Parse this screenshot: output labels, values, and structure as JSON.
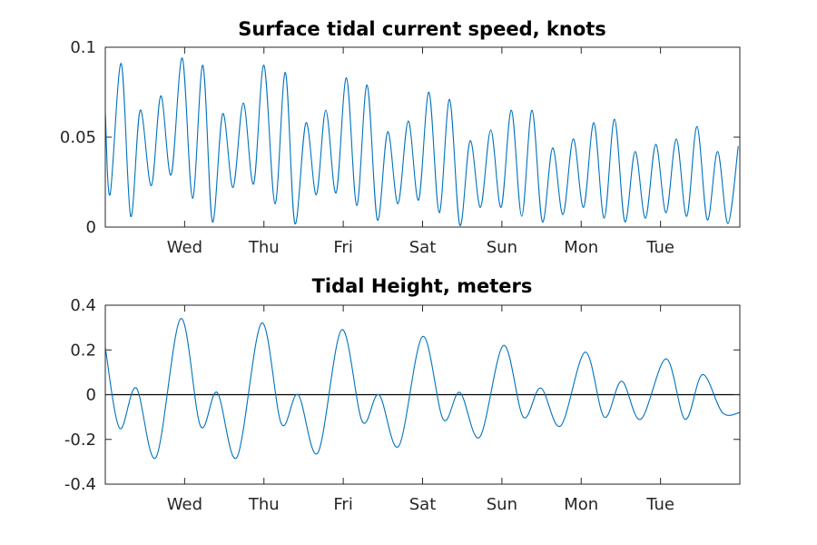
{
  "chart_data": [
    {
      "type": "line",
      "title": "Surface tidal current speed, knots",
      "xlabel": "",
      "ylabel": "",
      "ylim": [
        0,
        0.1
      ],
      "y_ticks": [
        0,
        0.05,
        0.1
      ],
      "y_tick_labels": [
        "0",
        "0.05",
        "0.1"
      ],
      "xlim_days": [
        0,
        8
      ],
      "x_ticks_days": [
        1,
        2,
        3,
        4,
        5,
        6,
        7
      ],
      "x_tick_labels": [
        "Wed",
        "Thu",
        "Fri",
        "Sat",
        "Sun",
        "Mon",
        "Tue"
      ],
      "grid": false,
      "series": [
        {
          "color": "#0072bd",
          "x": [
            0,
            0.06,
            0.2,
            0.32,
            0.44,
            0.58,
            0.7,
            0.83,
            0.97,
            1.1,
            1.23,
            1.35,
            1.48,
            1.61,
            1.74,
            1.87,
            2.0,
            2.14,
            2.27,
            2.39,
            2.53,
            2.66,
            2.78,
            2.91,
            3.04,
            3.17,
            3.3,
            3.43,
            3.56,
            3.69,
            3.82,
            3.95,
            4.08,
            4.21,
            4.34,
            4.47,
            4.6,
            4.73,
            4.86,
            4.99,
            5.12,
            5.25,
            5.38,
            5.51,
            5.64,
            5.77,
            5.9,
            6.03,
            6.16,
            6.29,
            6.42,
            6.55,
            6.68,
            6.81,
            6.94,
            7.07,
            7.2,
            7.33,
            7.46,
            7.59,
            7.72,
            7.85,
            7.98
          ],
          "y": [
            0.064,
            0.018,
            0.091,
            0.006,
            0.065,
            0.023,
            0.073,
            0.029,
            0.094,
            0.016,
            0.09,
            0.003,
            0.063,
            0.022,
            0.069,
            0.024,
            0.09,
            0.013,
            0.086,
            0.002,
            0.058,
            0.018,
            0.065,
            0.019,
            0.083,
            0.012,
            0.079,
            0.004,
            0.053,
            0.013,
            0.059,
            0.015,
            0.075,
            0.008,
            0.071,
            0.001,
            0.048,
            0.011,
            0.054,
            0.011,
            0.065,
            0.006,
            0.065,
            0.003,
            0.044,
            0.007,
            0.049,
            0.011,
            0.058,
            0.005,
            0.06,
            0.003,
            0.042,
            0.005,
            0.046,
            0.008,
            0.049,
            0.006,
            0.056,
            0.004,
            0.042,
            0.002,
            0.045
          ]
        }
      ]
    },
    {
      "type": "line",
      "title": "Tidal Height, meters",
      "xlabel": "",
      "ylabel": "",
      "ylim": [
        -0.4,
        0.4
      ],
      "y_ticks": [
        -0.4,
        -0.2,
        0,
        0.2,
        0.4
      ],
      "y_tick_labels": [
        "-0.4",
        "-0.2",
        "0",
        "0.2",
        "0.4"
      ],
      "xlim_days": [
        0,
        8
      ],
      "x_ticks_days": [
        1,
        2,
        3,
        4,
        5,
        6,
        7
      ],
      "x_tick_labels": [
        "Wed",
        "Thu",
        "Fri",
        "Sat",
        "Sun",
        "Mon",
        "Tue"
      ],
      "zero_line": true,
      "grid": false,
      "series": [
        {
          "color": "#0072bd",
          "x": [
            0,
            0.18,
            0.39,
            0.64,
            0.95,
            1.2,
            1.41,
            1.66,
            1.97,
            2.22,
            2.43,
            2.68,
            2.98,
            3.24,
            3.45,
            3.7,
            4.0,
            4.26,
            4.47,
            4.72,
            5.02,
            5.27,
            5.49,
            5.74,
            6.05,
            6.29,
            6.51,
            6.75,
            7.07,
            7.31,
            7.53,
            7.78,
            8.0
          ],
          "y": [
            0.21,
            -0.15,
            0.03,
            -0.28,
            0.34,
            -0.14,
            0.01,
            -0.28,
            0.32,
            -0.13,
            0.0,
            -0.26,
            0.29,
            -0.12,
            0.0,
            -0.23,
            0.26,
            -0.11,
            0.01,
            -0.19,
            0.22,
            -0.1,
            0.03,
            -0.14,
            0.19,
            -0.1,
            0.06,
            -0.11,
            0.16,
            -0.11,
            0.09,
            -0.08,
            -0.08
          ]
        }
      ]
    }
  ]
}
